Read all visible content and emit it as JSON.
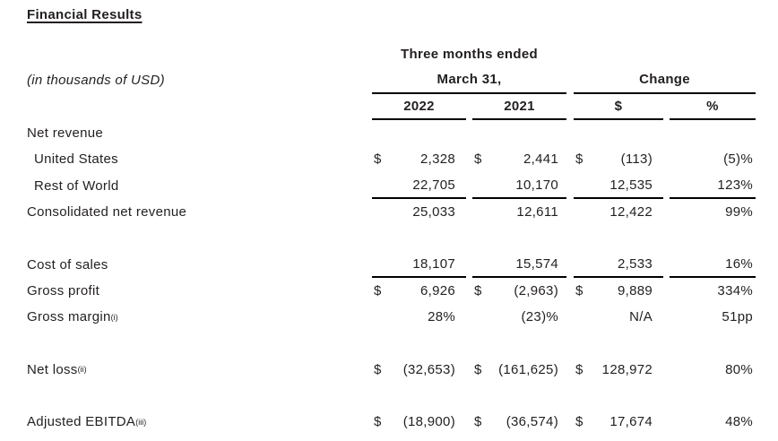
{
  "title": "Financial Results",
  "units_note": "(in thousands of USD)",
  "colors": {
    "text": "#231f20",
    "rule_line": "#000000",
    "background": "#ffffff"
  },
  "table": {
    "period_header": "Three months ended",
    "period_subheader": "March 31,",
    "change_header": "Change",
    "columns": [
      "2022",
      "2021",
      "$",
      "%"
    ],
    "rows": [
      {
        "type": "section",
        "label": "Net revenue"
      },
      {
        "type": "data",
        "label": "United States",
        "indent": true,
        "dollars": [
          "$",
          "$",
          "$"
        ],
        "values": [
          "2,328",
          "2,441",
          "(113)",
          "(5)%"
        ]
      },
      {
        "type": "data",
        "label": "Rest of World",
        "indent": true,
        "rule": true,
        "dollars": [
          "",
          "",
          ""
        ],
        "values": [
          "22,705",
          "10,170",
          "12,535",
          "123%"
        ]
      },
      {
        "type": "data",
        "label": "Consolidated net revenue",
        "dollars": [
          "",
          "",
          ""
        ],
        "values": [
          "25,033",
          "12,611",
          "12,422",
          "99%"
        ]
      },
      {
        "type": "spacer"
      },
      {
        "type": "data",
        "label": "Cost of sales",
        "rule": true,
        "dollars": [
          "",
          "",
          ""
        ],
        "values": [
          "18,107",
          "15,574",
          "2,533",
          "16%"
        ]
      },
      {
        "type": "data",
        "label": "Gross profit",
        "dollars": [
          "$",
          "$",
          "$"
        ],
        "values": [
          "6,926",
          "(2,963)",
          "9,889",
          "334%"
        ]
      },
      {
        "type": "data",
        "label": "Gross margin",
        "sup": "(i)",
        "dollars": [
          "",
          "",
          ""
        ],
        "values": [
          "28%",
          "(23)%",
          "N/A",
          "51pp"
        ]
      },
      {
        "type": "spacer"
      },
      {
        "type": "data",
        "label": "Net loss",
        "sup": "(ii)",
        "dollars": [
          "$",
          "$",
          "$"
        ],
        "values": [
          "(32,653)",
          "(161,625)",
          "128,972",
          "80%"
        ]
      },
      {
        "type": "spacer"
      },
      {
        "type": "data",
        "label": "Adjusted EBITDA",
        "sup": "(iii)",
        "dollars": [
          "$",
          "$",
          "$"
        ],
        "values": [
          "(18,900)",
          "(36,574)",
          "17,674",
          "48%"
        ]
      }
    ]
  }
}
